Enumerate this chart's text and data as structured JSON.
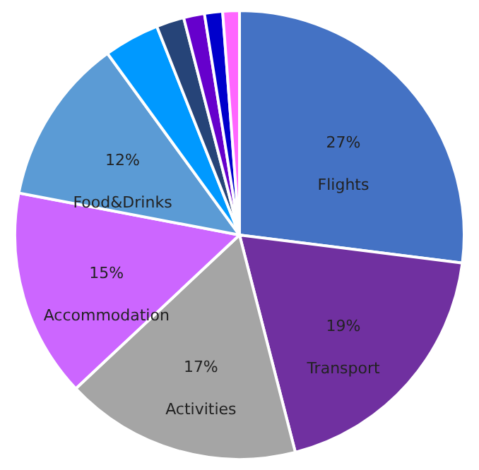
{
  "chart_data": {
    "type": "pie",
    "categories": [
      "Flights",
      "Transport",
      "Activities",
      "Accommodation",
      "Food&Drinks",
      null,
      null,
      null,
      null,
      null
    ],
    "values": [
      27,
      19,
      17,
      15,
      12,
      4,
      2,
      1.5,
      1.3,
      1.2
    ],
    "value_labels": [
      "27%",
      "19%",
      "17%",
      "15%",
      "12%",
      null,
      null,
      null,
      null,
      null
    ],
    "colors": [
      "#4472c4",
      "#7030a0",
      "#a5a5a5",
      "#cc66ff",
      "#5b9bd5",
      "#0099ff",
      "#264478",
      "#6600cc",
      "#0000cc",
      "#ff66ff"
    ]
  }
}
